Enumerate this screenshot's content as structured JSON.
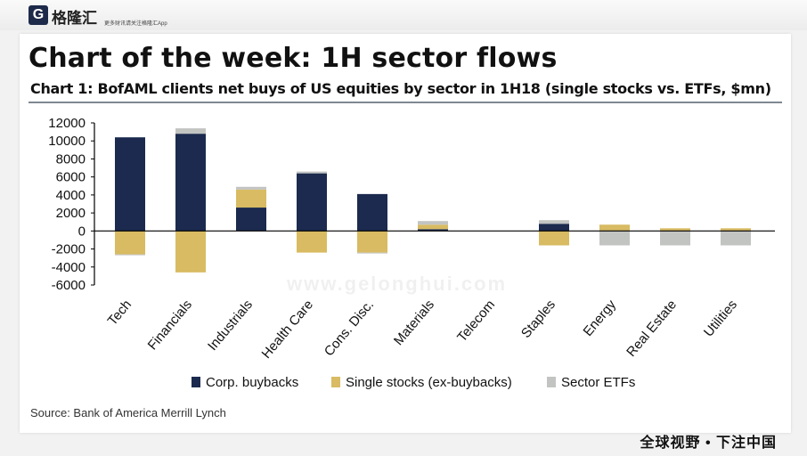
{
  "header": {
    "logo_mark": "G",
    "logo_name": "格隆汇",
    "tagline": "更多财讯请关注格隆汇App"
  },
  "main_title": "Chart of the week: 1H sector flows",
  "chart_title": "Chart 1: BofAML clients net buys of US equities by sector in 1H18  (single stocks vs. ETFs, $mn)",
  "source": "Source: Bank of America Merrill Lynch",
  "footer": "全球视野 • 下注中国",
  "watermark": "www.gelonghui.com",
  "colors": {
    "corp_buybacks": "#1b2a4e",
    "single_stocks": "#d8bb62",
    "sector_etfs": "#c2c4c2"
  },
  "chart_data": {
    "type": "bar",
    "stacked": true,
    "categories": [
      "Tech",
      "Financials",
      "Industrials",
      "Health Care",
      "Cons. Disc.",
      "Materials",
      "Telecom",
      "Staples",
      "Energy",
      "Real Estate",
      "Utilities"
    ],
    "series": [
      {
        "name": "Corp. buybacks",
        "color": "#1b2a4e",
        "values": [
          10400,
          10800,
          2600,
          6400,
          4100,
          200,
          0,
          800,
          0,
          0,
          0
        ]
      },
      {
        "name": "Single stocks (ex-buybacks)",
        "color": "#d8bb62",
        "values": [
          -2600,
          -4600,
          2000,
          -2400,
          -2400,
          500,
          0,
          -1600,
          700,
          300,
          300
        ]
      },
      {
        "name": "Sector ETFs",
        "color": "#c2c4c2",
        "values": [
          -100,
          600,
          300,
          200,
          -100,
          400,
          0,
          400,
          -1600,
          -1600,
          -1600
        ]
      }
    ],
    "yticks": [
      12000,
      10000,
      8000,
      6000,
      4000,
      2000,
      0,
      -2000,
      -4000,
      -6000
    ],
    "ylim": [
      -6000,
      12000
    ],
    "legend_position": "bottom",
    "grid": false
  }
}
